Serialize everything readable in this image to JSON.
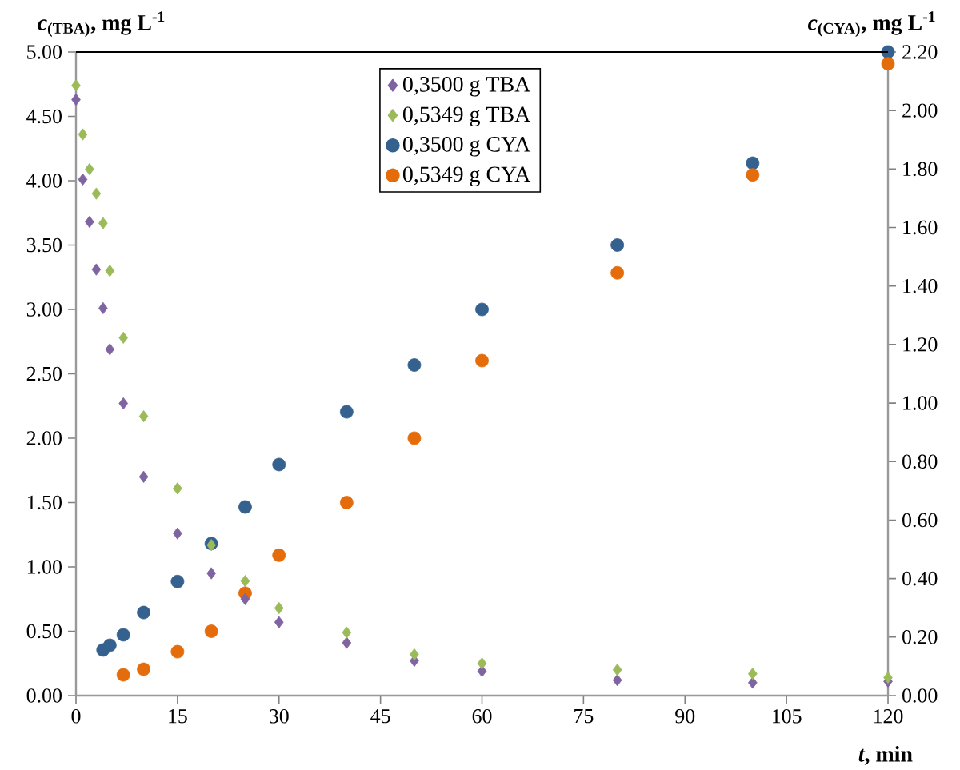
{
  "chart_data": {
    "type": "scatter",
    "xlabel": "*t*, min",
    "ylabel": "*c*$_{(TBA)}$, mg L$^{-1}$",
    "y2label": "*c*$_{(CYA)}$, mg L$^{-1}$",
    "xlim": [
      0,
      120
    ],
    "xticks": [
      0,
      15,
      30,
      45,
      60,
      75,
      90,
      105,
      120
    ],
    "ylim": [
      0,
      5
    ],
    "yticks": [
      {
        "value": 0,
        "label": "0.00"
      },
      {
        "value": 0.5,
        "label": "0.50"
      },
      {
        "value": 1,
        "label": "1.00"
      },
      {
        "value": 1.5,
        "label": "1.50"
      },
      {
        "value": 2,
        "label": "2.00"
      },
      {
        "value": 2.5,
        "label": "2.50"
      },
      {
        "value": 3,
        "label": "3.00"
      },
      {
        "value": 3.5,
        "label": "3.50"
      },
      {
        "value": 4,
        "label": "4.00"
      },
      {
        "value": 4.5,
        "label": "4.50"
      },
      {
        "value": 5,
        "label": "5.00"
      }
    ],
    "y2lim": [
      0,
      2.2
    ],
    "y2ticks": [
      {
        "value": 0,
        "label": "0.00"
      },
      {
        "value": 0.2,
        "label": "0.20"
      },
      {
        "value": 0.4,
        "label": "0.40"
      },
      {
        "value": 0.6,
        "label": "0.60"
      },
      {
        "value": 0.8,
        "label": "0.80"
      },
      {
        "value": 1,
        "label": "1.00"
      },
      {
        "value": 1.2,
        "label": "1.20"
      },
      {
        "value": 1.4,
        "label": "1.40"
      },
      {
        "value": 1.6,
        "label": "1.60"
      },
      {
        "value": 1.8,
        "label": "1.80"
      },
      {
        "value": 2,
        "label": "2.00"
      },
      {
        "value": 2.2,
        "label": "2.20"
      }
    ],
    "grid": false,
    "legend": "top",
    "series": [
      {
        "name": "0,3500 g TBA",
        "color": "#8064a2",
        "marker": "diamond",
        "x": [
          0,
          1,
          2,
          3,
          4,
          5,
          7,
          10,
          15,
          20,
          25,
          30,
          40,
          50,
          60,
          80,
          100,
          120
        ],
        "values": [
          4.63,
          4.01,
          3.68,
          3.31,
          3.01,
          2.69,
          2.27,
          1.7,
          1.26,
          0.95,
          0.75,
          0.57,
          0.41,
          0.27,
          0.19,
          0.12,
          0.1,
          0.11
        ]
      },
      {
        "name": "0,5349 g TBA",
        "color": "#9bbb59",
        "marker": "diamond",
        "x": [
          0,
          1,
          2,
          3,
          4,
          5,
          7,
          10,
          15,
          20,
          25,
          30,
          40,
          50,
          60,
          80,
          100,
          120
        ],
        "values": [
          4.74,
          4.36,
          4.09,
          3.9,
          3.67,
          3.3,
          2.78,
          2.17,
          1.61,
          1.17,
          0.89,
          0.68,
          0.49,
          0.32,
          0.25,
          0.2,
          0.17,
          0.14
        ]
      },
      {
        "name": "0,3500 g CYA",
        "color": "#35618f",
        "marker": "circle",
        "axis": "y2",
        "x": [
          4,
          5,
          7,
          10,
          15,
          20,
          25,
          30,
          40,
          50,
          60,
          80,
          100,
          120
        ],
        "values": [
          0.156,
          0.172,
          0.208,
          0.284,
          0.39,
          0.52,
          0.645,
          0.79,
          0.97,
          1.13,
          1.32,
          1.54,
          1.82,
          2.2
        ]
      },
      {
        "name": "0,5349 g CYA",
        "color": "#e46c0a",
        "marker": "circle",
        "axis": "y2",
        "x": [
          7,
          10,
          15,
          20,
          25,
          30,
          40,
          50,
          60,
          80,
          100,
          120
        ],
        "values": [
          0.071,
          0.09,
          0.15,
          0.22,
          0.35,
          0.48,
          0.66,
          0.88,
          1.145,
          1.445,
          1.78,
          2.16
        ]
      }
    ]
  }
}
